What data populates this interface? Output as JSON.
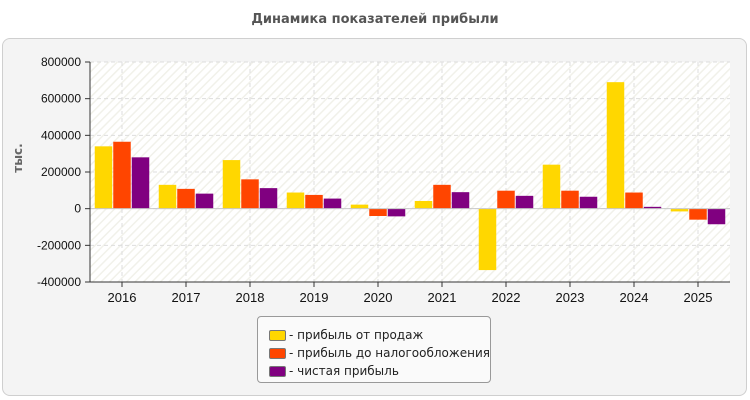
{
  "chart_data": {
    "type": "bar",
    "title": "Динамика показателей прибыли",
    "ylabel": "тыс.",
    "xlabel": "",
    "ylim": [
      -400000,
      800000
    ],
    "yticks": [
      800000,
      600000,
      400000,
      200000,
      0,
      -200000,
      -400000
    ],
    "grid": true,
    "legend_position": "bottom-center",
    "categories": [
      "2016",
      "2017",
      "2018",
      "2019",
      "2020",
      "2021",
      "2022",
      "2023",
      "2024",
      "2025"
    ],
    "series": [
      {
        "name": "- прибыль от продаж",
        "color": "#ffd700",
        "values": [
          340000,
          130000,
          265000,
          88000,
          22000,
          42000,
          -335000,
          240000,
          690000,
          -15000
        ]
      },
      {
        "name": "- прибыль до налогообложения",
        "color": "#ff4500",
        "values": [
          365000,
          108000,
          160000,
          75000,
          -40000,
          130000,
          98000,
          98000,
          88000,
          -60000
        ]
      },
      {
        "name": "- чистая прибыль",
        "color": "#800080",
        "values": [
          280000,
          82000,
          112000,
          55000,
          -42000,
          90000,
          70000,
          65000,
          10000,
          -85000
        ]
      }
    ]
  }
}
